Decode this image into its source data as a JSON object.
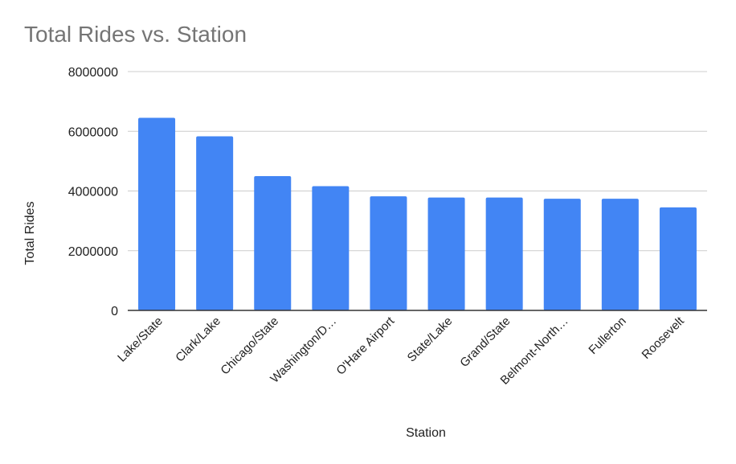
{
  "chart_data": {
    "type": "bar",
    "title": "Total Rides vs. Station",
    "xlabel": "Station",
    "ylabel": "Total Rides",
    "categories": [
      "Lake/State",
      "Clark/Lake",
      "Chicago/State",
      "Washington/D…",
      "O'Hare Airport",
      "State/Lake",
      "Grand/State",
      "Belmont-North…",
      "Fullerton",
      "Roosevelt"
    ],
    "values": [
      6450000,
      5830000,
      4500000,
      4160000,
      3820000,
      3780000,
      3780000,
      3740000,
      3740000,
      3450000
    ],
    "ylim": [
      0,
      8000000
    ],
    "yticks": [
      "0",
      "2000000",
      "4000000",
      "6000000",
      "8000000"
    ],
    "grid": true,
    "legend": "none",
    "bar_color": "#4285f4",
    "gridline_color": "#cccccc",
    "axis_color": "#333333"
  }
}
